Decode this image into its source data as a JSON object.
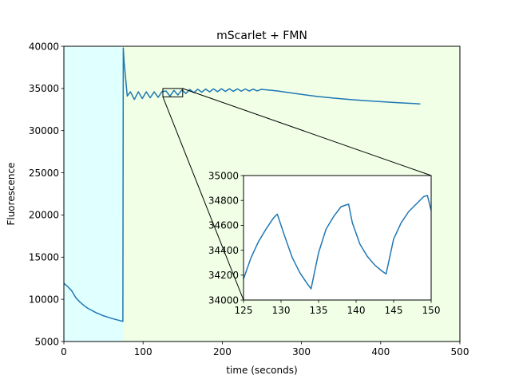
{
  "chart_data": [
    {
      "type": "line",
      "title": "mScarlet + FMN",
      "xlabel": "time (seconds)",
      "ylabel": "Fluorescence",
      "xlim": [
        0,
        500
      ],
      "ylim": [
        5000,
        40000
      ],
      "xticks": [
        0,
        100,
        200,
        300,
        400,
        500
      ],
      "yticks": [
        5000,
        10000,
        15000,
        20000,
        25000,
        30000,
        35000,
        40000
      ],
      "xtick_labels": [
        "0",
        "100",
        "200",
        "300",
        "400",
        "500"
      ],
      "ytick_labels": [
        "5000",
        "10000",
        "15000",
        "20000",
        "25000",
        "30000",
        "35000",
        "40000"
      ],
      "grid": false,
      "shaded_regions": [
        {
          "x0": 0,
          "x1": 75,
          "color": "#e0ffff"
        },
        {
          "x0": 75,
          "x1": 500,
          "color": "#f0ffe6"
        }
      ],
      "series": [
        {
          "color": "#1f77b4",
          "x": [
            0,
            5,
            10,
            15,
            20,
            25,
            30,
            35,
            40,
            45,
            50,
            55,
            60,
            65,
            70,
            74.5,
            75,
            76,
            80,
            84,
            89,
            94,
            99,
            104,
            109,
            114,
            119,
            124,
            129,
            134,
            139,
            144,
            149,
            154,
            159,
            164,
            169,
            174,
            179,
            184,
            189,
            194,
            199,
            204,
            209,
            214,
            219,
            224,
            229,
            234,
            239,
            244,
            249,
            260,
            270,
            280,
            300,
            320,
            340,
            360,
            380,
            400,
            420,
            440,
            450
          ],
          "y": [
            11900,
            11500,
            11000,
            10200,
            9700,
            9300,
            8950,
            8700,
            8450,
            8250,
            8050,
            7900,
            7750,
            7620,
            7500,
            7380,
            39800,
            38200,
            34100,
            34600,
            33700,
            34600,
            33800,
            34600,
            33900,
            34600,
            33950,
            34640,
            34690,
            34090,
            34770,
            34220,
            34840,
            34400,
            34880,
            34500,
            34910,
            34560,
            34930,
            34600,
            34950,
            34620,
            34960,
            34640,
            34960,
            34660,
            34950,
            34680,
            34940,
            34700,
            34920,
            34710,
            34890,
            34800,
            34700,
            34560,
            34300,
            34050,
            33860,
            33700,
            33560,
            33440,
            33320,
            33220,
            33160
          ]
        }
      ]
    },
    {
      "type": "line",
      "title": "",
      "xlabel": "",
      "ylabel": "",
      "xlim": [
        125,
        150
      ],
      "ylim": [
        34000,
        35000
      ],
      "xticks": [
        125,
        130,
        135,
        140,
        145,
        150
      ],
      "yticks": [
        34000,
        34200,
        34400,
        34600,
        34800,
        35000
      ],
      "xtick_labels": [
        "125",
        "130",
        "135",
        "140",
        "145",
        "150"
      ],
      "ytick_labels": [
        "34000",
        "34200",
        "34400",
        "34600",
        "34800",
        "35000"
      ],
      "grid": false,
      "series": [
        {
          "color": "#1f77b4",
          "x": [
            125,
            126,
            127,
            128,
            129,
            129.5,
            130.5,
            131.5,
            132.5,
            133.5,
            134,
            135,
            136,
            137,
            138,
            139,
            139.5,
            140.5,
            141.5,
            142.5,
            143.5,
            144,
            145,
            146,
            147,
            148,
            149,
            149.5,
            150
          ],
          "y": [
            34170,
            34340,
            34470,
            34570,
            34660,
            34690,
            34510,
            34340,
            34220,
            34130,
            34090,
            34380,
            34570,
            34670,
            34750,
            34770,
            34620,
            34450,
            34350,
            34280,
            34230,
            34210,
            34490,
            34620,
            34710,
            34770,
            34830,
            34840,
            34720
          ]
        }
      ]
    }
  ]
}
